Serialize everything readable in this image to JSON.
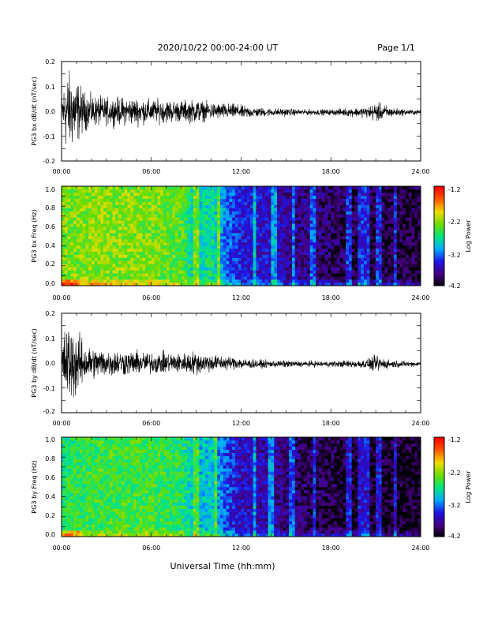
{
  "header": {
    "date_range": "2020/10/22  00:00-24:00 UT",
    "page": "Page 1/1"
  },
  "xlabel": "Universal Time (hh:mm)",
  "chart_data": [
    {
      "type": "line",
      "ylabel": "PG3 bx dB/dt (nT/sec)",
      "xlim": [
        0,
        24
      ],
      "ylim": [
        -0.2,
        0.2
      ],
      "x_ticks": [
        "00:00",
        "06:00",
        "12:00",
        "18:00",
        "24:00"
      ],
      "y_ticks": [
        "0.2",
        "0.1",
        "0.0",
        "-0.1",
        "-0.2"
      ],
      "envelope": {
        "x_hours": [
          0,
          0.3,
          0.6,
          1.0,
          1.5,
          2,
          3,
          4,
          5,
          6,
          7,
          8,
          9,
          9.5,
          10,
          11,
          12,
          13,
          14,
          15,
          16,
          17,
          18,
          19,
          20,
          20.5,
          21,
          21.5,
          22,
          23,
          24
        ],
        "amplitude": [
          0.08,
          0.2,
          0.2,
          0.17,
          0.1,
          0.08,
          0.07,
          0.07,
          0.07,
          0.06,
          0.06,
          0.055,
          0.06,
          0.05,
          0.045,
          0.04,
          0.035,
          0.025,
          0.02,
          0.02,
          0.015,
          0.015,
          0.015,
          0.02,
          0.025,
          0.03,
          0.05,
          0.04,
          0.025,
          0.015,
          0.012
        ]
      }
    },
    {
      "type": "heatmap",
      "ylabel": "PG3 bx Freq (Hz)",
      "xlim": [
        0,
        24
      ],
      "ylim": [
        0,
        1.0
      ],
      "x_ticks": [
        "00:00",
        "06:00",
        "12:00",
        "18:00",
        "24:00"
      ],
      "y_ticks": [
        "1.0",
        "0.8",
        "0.6",
        "0.4",
        "0.2",
        "0.0"
      ],
      "colorbar": {
        "label": "Log Power",
        "ticks": [
          "-1.2",
          "-2.2",
          "-3.2",
          "-4.2"
        ],
        "range": [
          -4.2,
          -1.2
        ]
      },
      "log_power_profile": {
        "x_hours": [
          0,
          3,
          6,
          8,
          9,
          10,
          11,
          12,
          14,
          16,
          18,
          20,
          22,
          24
        ],
        "level": [
          -2.3,
          -2.25,
          -2.3,
          -2.4,
          -2.9,
          -2.7,
          -3.2,
          -3.5,
          -3.6,
          -3.8,
          -3.9,
          -4.0,
          -4.0,
          -4.0
        ]
      },
      "bright_stripes_hours": [
        9.0,
        10.5,
        12.9,
        14.2,
        15.5,
        16.8,
        19.2,
        20.0,
        20.4,
        21.2,
        22.3
      ]
    },
    {
      "type": "line",
      "ylabel": "PG3 by dB/dt (nT/sec)",
      "xlim": [
        0,
        24
      ],
      "ylim": [
        -0.2,
        0.2
      ],
      "x_ticks": [
        "00:00",
        "06:00",
        "12:00",
        "18:00",
        "24:00"
      ],
      "y_ticks": [
        "0.2",
        "0.1",
        "0.0",
        "-0.1",
        "-0.2"
      ],
      "envelope": {
        "x_hours": [
          0,
          0.3,
          0.6,
          1.0,
          1.5,
          2,
          3,
          4,
          5,
          6,
          7,
          8,
          9,
          9.5,
          10,
          11,
          12,
          13,
          14,
          15,
          16,
          17,
          18,
          19,
          20,
          20.5,
          21,
          21.5,
          22,
          23,
          24
        ],
        "amplitude": [
          0.08,
          0.2,
          0.2,
          0.17,
          0.1,
          0.08,
          0.07,
          0.065,
          0.06,
          0.055,
          0.055,
          0.05,
          0.06,
          0.05,
          0.045,
          0.035,
          0.03,
          0.022,
          0.018,
          0.018,
          0.015,
          0.015,
          0.015,
          0.018,
          0.022,
          0.025,
          0.045,
          0.03,
          0.02,
          0.015,
          0.012
        ]
      }
    },
    {
      "type": "heatmap",
      "ylabel": "PG3 by Freq (Hz)",
      "xlim": [
        0,
        24
      ],
      "ylim": [
        0,
        1.0
      ],
      "x_ticks": [
        "00:00",
        "06:00",
        "12:00",
        "18:00",
        "24:00"
      ],
      "y_ticks": [
        "1.0",
        "0.8",
        "0.6",
        "0.4",
        "0.2",
        "0.0"
      ],
      "colorbar": {
        "label": "Log Power",
        "ticks": [
          "-1.2",
          "-2.2",
          "-3.2",
          "-4.2"
        ],
        "range": [
          -4.2,
          -1.2
        ]
      },
      "log_power_profile": {
        "x_hours": [
          0,
          3,
          6,
          8,
          9,
          10,
          11,
          12,
          14,
          16,
          18,
          20,
          22,
          24
        ],
        "level": [
          -2.6,
          -2.5,
          -2.5,
          -2.6,
          -3.0,
          -2.9,
          -3.3,
          -3.6,
          -3.7,
          -3.9,
          -4.0,
          -4.1,
          -4.1,
          -4.1
        ]
      },
      "bright_stripes_hours": [
        9.0,
        10.3,
        12.9,
        14.0,
        15.4,
        16.9,
        19.2,
        20.0,
        20.4,
        21.2,
        22.3
      ]
    }
  ]
}
